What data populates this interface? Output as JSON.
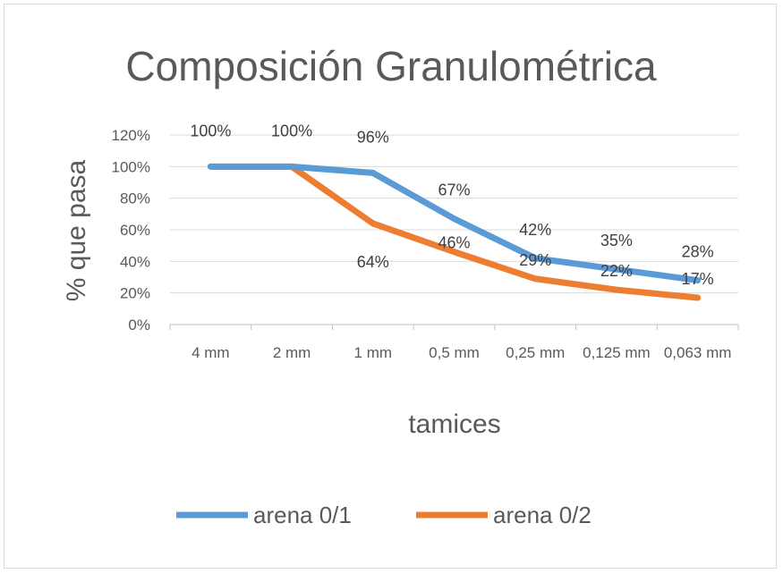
{
  "chart_data": {
    "type": "line",
    "title": "Composición Granulométrica",
    "xlabel": "tamices",
    "ylabel": "% que pasa",
    "categories": [
      "4 mm",
      "2 mm",
      "1 mm",
      "0,5 mm",
      "0,25 mm",
      "0,125 mm",
      "0,063 mm"
    ],
    "y_ticks": [
      "0%",
      "20%",
      "40%",
      "60%",
      "80%",
      "100%",
      "120%"
    ],
    "ylim": [
      0,
      1.2
    ],
    "grid": true,
    "legend_position": "bottom",
    "series": [
      {
        "name": "arena 0/1",
        "color": "#5b9bd5",
        "values": [
          1.0,
          1.0,
          0.96,
          0.67,
          0.42,
          0.35,
          0.28
        ],
        "labels": [
          "100%",
          "100%",
          "96%",
          "67%",
          "42%",
          "35%",
          "28%"
        ]
      },
      {
        "name": "arena 0/2",
        "color": "#ed7d31",
        "values": [
          1.0,
          1.0,
          0.64,
          0.46,
          0.29,
          0.22,
          0.17
        ],
        "labels": [
          "",
          "",
          "64%",
          "46%",
          "29%",
          "22%",
          "17%"
        ]
      }
    ]
  }
}
